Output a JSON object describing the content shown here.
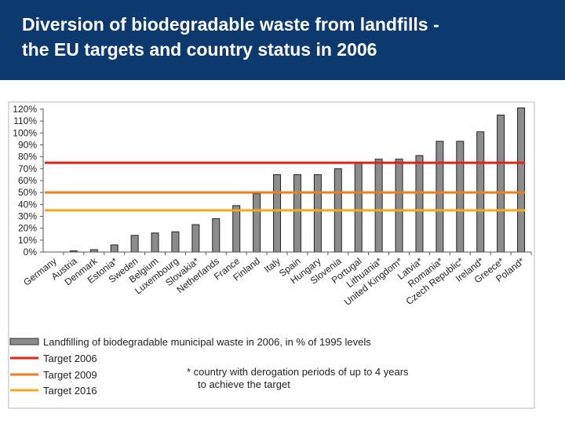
{
  "header": {
    "title_line1": "Diversion of biodegradable waste from landfills -",
    "title_line2": "the EU targets and country status in 2006"
  },
  "chart_data": {
    "type": "bar",
    "ylim": [
      0,
      120
    ],
    "yticks": [
      "0%",
      "10%",
      "20%",
      "30%",
      "40%",
      "50%",
      "60%",
      "70%",
      "80%",
      "90%",
      "100%",
      "110%",
      "120%"
    ],
    "categories": [
      "Germany",
      "Austria",
      "Denmark",
      "Estonia*",
      "Sweden",
      "Belgium",
      "Luxembourg",
      "Slovakia*",
      "Netherlands",
      "France",
      "Finland",
      "Italy",
      "Spain",
      "Hungary",
      "Slovenia",
      "Portugal",
      "Lithuania*",
      "United Kingdom*",
      "Latvia*",
      "Romania*",
      "Czech Republic*",
      "Ireland*",
      "Greece*",
      "Poland*"
    ],
    "values": [
      0,
      1,
      2,
      6,
      14,
      16,
      17,
      23,
      28,
      39,
      49,
      65,
      65,
      65,
      70,
      75,
      78,
      78,
      81,
      93,
      93,
      101,
      115,
      121
    ],
    "bar_color": "#8c8c8c",
    "targets": [
      {
        "name": "Target 2006",
        "value": 75,
        "color": "#e3241b"
      },
      {
        "name": "Target 2009",
        "value": 50,
        "color": "#f07d1e"
      },
      {
        "name": "Target 2016",
        "value": 35,
        "color": "#f8a81b"
      }
    ],
    "legend": {
      "bar_label": "Landfilling of biodegradable municipal waste in 2006, in % of 1995 levels",
      "note_line1": "* country with derogation periods of up to 4 years",
      "note_line2": "to achieve the target"
    }
  }
}
